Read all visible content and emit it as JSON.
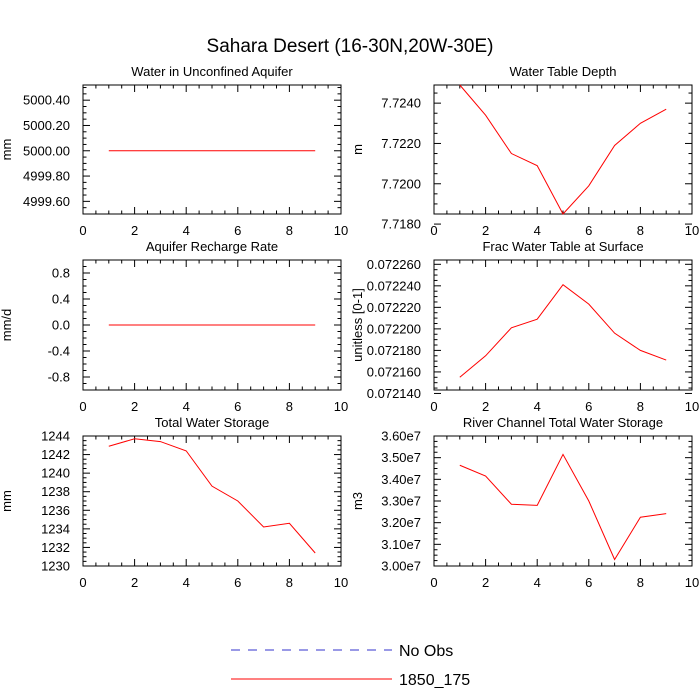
{
  "title": "Sahara Desert (16-30N,20W-30E)",
  "colors": {
    "model": "#ff0000",
    "obs": "#3333cc",
    "axis": "#000000"
  },
  "legend": {
    "placement": "bottom-center",
    "entries": [
      {
        "label": "No Obs",
        "style": "dashed",
        "color": "#3333cc"
      },
      {
        "label": "1850_175",
        "style": "solid",
        "color": "#ff0000"
      }
    ]
  },
  "chart_data": [
    {
      "type": "line",
      "title": "Water in Unconfined Aquifer",
      "ylabel": "mm",
      "xlim": [
        0,
        10
      ],
      "ylim": [
        4999.5,
        5000.52
      ],
      "xticks": [
        0,
        2,
        4,
        6,
        8,
        10
      ],
      "yticks": [
        4999.6,
        4999.8,
        5000.0,
        5000.2,
        5000.4
      ],
      "ytick_labels": [
        "4999.60",
        "4999.80",
        "5000.00",
        "5000.20",
        "5000.40"
      ],
      "series": [
        {
          "name": "1850_175",
          "x": [
            1,
            2,
            3,
            4,
            5,
            6,
            7,
            8,
            9
          ],
          "y": [
            5000.0,
            5000.0,
            5000.0,
            5000.0,
            5000.0,
            5000.0,
            5000.0,
            5000.0,
            5000.0
          ]
        }
      ]
    },
    {
      "type": "line",
      "title": "Water Table Depth",
      "ylabel": "m",
      "xlim": [
        0,
        10
      ],
      "ylim": [
        7.7185,
        7.7249
      ],
      "xticks": [
        0,
        2,
        4,
        6,
        8,
        10
      ],
      "yticks": [
        7.718,
        7.72,
        7.722,
        7.724
      ],
      "ytick_labels": [
        "7.7180",
        "7.7200",
        "7.7220",
        "7.7240"
      ],
      "series": [
        {
          "name": "1850_175",
          "x": [
            1,
            2,
            3,
            4,
            5,
            6,
            7,
            8,
            9
          ],
          "y": [
            7.7249,
            7.7234,
            7.7215,
            7.7209,
            7.7185,
            7.7199,
            7.7219,
            7.723,
            7.7237
          ]
        }
      ]
    },
    {
      "type": "line",
      "title": "Aquifer Recharge Rate",
      "ylabel": "mm/d",
      "xlim": [
        0,
        10
      ],
      "ylim": [
        -1.0,
        1.0
      ],
      "xticks": [
        0,
        2,
        4,
        6,
        8,
        10
      ],
      "yticks": [
        -0.8,
        -0.4,
        0.0,
        0.4,
        0.8
      ],
      "ytick_labels": [
        "-0.8",
        "-0.4",
        "0.0",
        "0.4",
        "0.8"
      ],
      "series": [
        {
          "name": "1850_175",
          "x": [
            1,
            2,
            3,
            4,
            5,
            6,
            7,
            8,
            9
          ],
          "y": [
            0,
            0,
            0,
            0,
            0,
            0,
            0,
            0,
            0
          ]
        }
      ]
    },
    {
      "type": "line",
      "title": "Frac Water Table at Surface",
      "ylabel": "unitless [0-1]",
      "xlim": [
        0,
        10
      ],
      "ylim": [
        0.0721432,
        0.072264
      ],
      "xticks": [
        0,
        2,
        4,
        6,
        8,
        10
      ],
      "yticks": [
        0.07214,
        0.07216,
        0.07218,
        0.0722,
        0.07222,
        0.07224,
        0.07226
      ],
      "ytick_labels": [
        "0.072140",
        "0.072160",
        "0.072180",
        "0.072200",
        "0.072220",
        "0.072240",
        "0.072260"
      ],
      "series": [
        {
          "name": "1850_175",
          "x": [
            1,
            2,
            3,
            4,
            5,
            6,
            7,
            8,
            9
          ],
          "y": [
            0.072155,
            0.072175,
            0.072201,
            0.072209,
            0.072241,
            0.072223,
            0.072196,
            0.07218,
            0.072171
          ]
        }
      ]
    },
    {
      "type": "line",
      "title": "Total Water Storage",
      "ylabel": "mm",
      "xlim": [
        0,
        10
      ],
      "ylim": [
        1230,
        1244
      ],
      "xticks": [
        0,
        2,
        4,
        6,
        8,
        10
      ],
      "yticks": [
        1230,
        1232,
        1234,
        1236,
        1238,
        1240,
        1242,
        1244
      ],
      "ytick_labels": [
        "1230",
        "1232",
        "1234",
        "1236",
        "1238",
        "1240",
        "1242",
        "1244"
      ],
      "series": [
        {
          "name": "1850_175",
          "x": [
            1,
            2,
            3,
            4,
            5,
            6,
            7,
            8,
            9
          ],
          "y": [
            1242.9,
            1243.7,
            1243.4,
            1242.4,
            1238.6,
            1237.0,
            1234.2,
            1234.6,
            1231.4
          ]
        }
      ]
    },
    {
      "type": "line",
      "title": "River Channel Total Water Storage",
      "ylabel": "m3",
      "xlim": [
        0,
        10
      ],
      "ylim": [
        30000000,
        36000000
      ],
      "xticks": [
        0,
        2,
        4,
        6,
        8,
        10
      ],
      "yticks": [
        30000000,
        31000000,
        32000000,
        33000000,
        34000000,
        35000000,
        36000000
      ],
      "ytick_labels": [
        "3.00e7",
        "3.10e7",
        "3.20e7",
        "3.30e7",
        "3.40e7",
        "3.50e7",
        "3.60e7"
      ],
      "series": [
        {
          "name": "1850_175",
          "x": [
            1,
            2,
            3,
            4,
            5,
            6,
            7,
            8,
            9
          ],
          "y": [
            34650000,
            34150000,
            32850000,
            32800000,
            35150000,
            33000000,
            30300000,
            32250000,
            32420000
          ]
        }
      ]
    }
  ]
}
